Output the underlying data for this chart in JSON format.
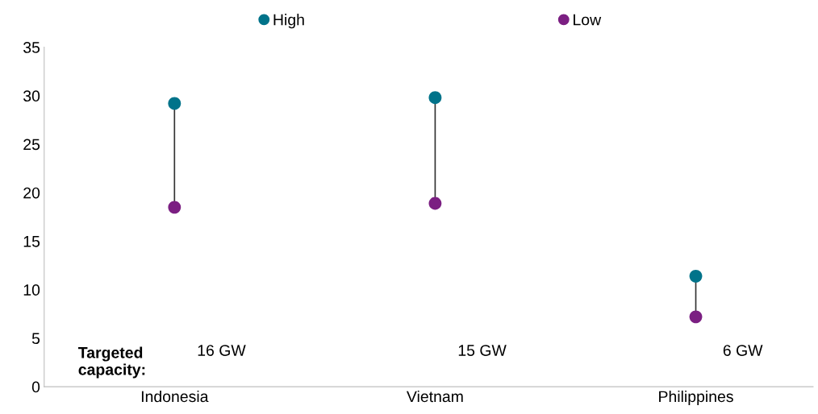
{
  "chart_data": {
    "type": "scatter",
    "categories": [
      "Indonesia",
      "Vietnam",
      "Philippines"
    ],
    "series": [
      {
        "name": "High",
        "color": "#00738a",
        "values": [
          29.2,
          29.8,
          11.4
        ]
      },
      {
        "name": "Low",
        "color": "#7b1f82",
        "values": [
          18.5,
          18.9,
          7.2
        ]
      }
    ],
    "ylim": [
      0,
      35
    ],
    "yticks": [
      0,
      5,
      10,
      15,
      20,
      25,
      30,
      35
    ],
    "grid": false,
    "legend": "top",
    "marker": "circle",
    "annotations": [
      "Targeted\ncapacity:",
      "16 GW",
      "15 GW",
      "6 GW"
    ]
  }
}
